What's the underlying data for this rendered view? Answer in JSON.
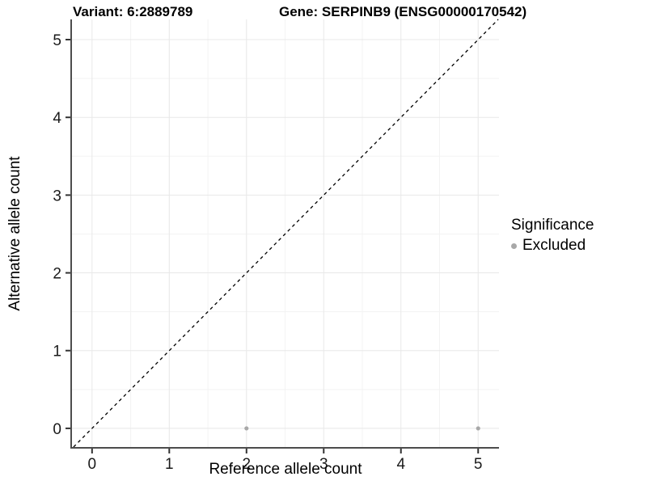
{
  "header": {
    "variant_title": "Variant: 6:2889789",
    "gene_title": "Gene: SERPINB9 (ENSG00000170542)"
  },
  "legend": {
    "title": "Significance",
    "items": [
      {
        "label": "Excluded",
        "color": "#a8a8a8"
      }
    ]
  },
  "colors": {
    "grid_major": "#e8e8e8",
    "grid_minor": "#f3f3f3",
    "axis_line": "#4d4d4d",
    "tick_mark": "#333333",
    "tick_label": "#1a1a1a",
    "identity_line": "#000000",
    "point": "#a8a8a8",
    "background": "#ffffff"
  },
  "chart_data": {
    "type": "scatter",
    "title": "Variant: 6:2889789   Gene: SERPINB9 (ENSG00000170542)",
    "xlabel": "Reference allele count",
    "ylabel": "Alternative allele count",
    "xlim": [
      -0.26,
      5.27
    ],
    "ylim": [
      -0.24,
      5.26
    ],
    "xticks": [
      0,
      1,
      2,
      3,
      4,
      5
    ],
    "yticks": [
      0,
      1,
      2,
      3,
      4,
      5
    ],
    "xticks_minor": [
      0.5,
      1.5,
      2.5,
      3.5,
      4.5
    ],
    "yticks_minor": [
      0.5,
      1.5,
      2.5,
      3.5,
      4.5
    ],
    "grid": true,
    "legend_position": "right",
    "reference_line": {
      "kind": "identity",
      "style": "dashed",
      "color": "#000000"
    },
    "series": [
      {
        "name": "Excluded",
        "color": "#a8a8a8",
        "points": [
          {
            "x": 2,
            "y": 0
          },
          {
            "x": 5,
            "y": 0
          }
        ]
      }
    ]
  }
}
